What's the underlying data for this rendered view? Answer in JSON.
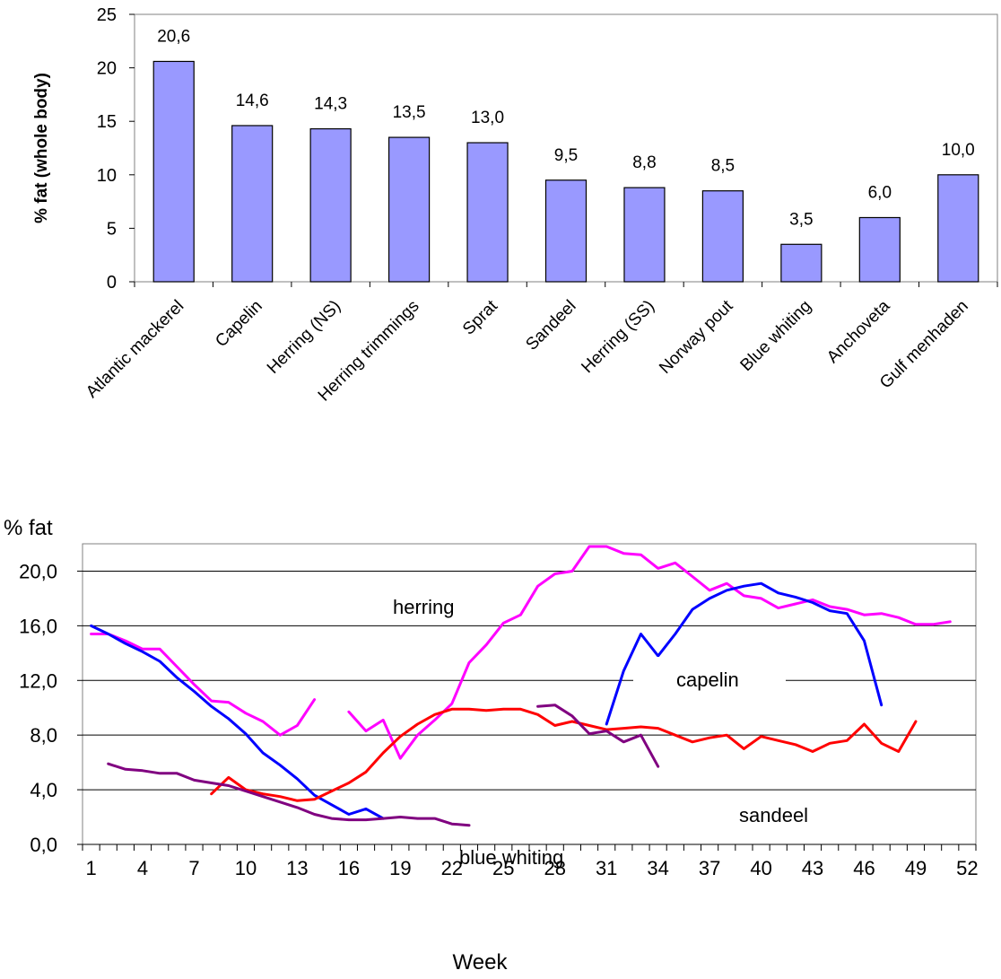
{
  "chart_data": [
    {
      "type": "bar",
      "ylabel": "% fat (whole body)",
      "ylim": [
        0,
        25
      ],
      "yticks": [
        "0",
        "5",
        "10",
        "15",
        "20",
        "25"
      ],
      "categories": [
        "Atlantic mackerel",
        "Capelin",
        "Herring (NS)",
        "Herring trimmings",
        "Sprat",
        "Sandeel",
        "Herring (SS)",
        "Norway pout",
        "Blue whiting",
        "Anchoveta",
        "Gulf menhaden"
      ],
      "values": [
        20.6,
        14.6,
        14.3,
        13.5,
        13.0,
        9.5,
        8.8,
        8.5,
        3.5,
        6.0,
        10.0
      ],
      "value_labels": [
        "20,6",
        "14,6",
        "14,3",
        "13,5",
        "13,0",
        "9,5",
        "8,8",
        "8,5",
        "3,5",
        "6,0",
        "10,0"
      ],
      "bar_color": "#9999ff",
      "grid": false
    },
    {
      "type": "line",
      "ylabel": "% fat",
      "xlabel": "Week",
      "xlim": [
        1,
        52
      ],
      "ylim": [
        0,
        22
      ],
      "xticks": [
        "1",
        "4",
        "7",
        "10",
        "13",
        "16",
        "19",
        "22",
        "25",
        "28",
        "31",
        "34",
        "37",
        "40",
        "43",
        "46",
        "49",
        "52"
      ],
      "yticks": [
        "0,0",
        "4,0",
        "8,0",
        "12,0",
        "16,0",
        "20,0"
      ],
      "grid": true,
      "series": [
        {
          "name": "herring",
          "color": "#ff00ff",
          "segments": [
            [
              [
                1,
                15.4
              ],
              [
                2,
                15.4
              ],
              [
                3,
                14.9
              ],
              [
                4,
                14.3
              ],
              [
                5,
                14.3
              ],
              [
                6,
                13.0
              ],
              [
                7,
                11.7
              ],
              [
                8,
                10.5
              ],
              [
                9,
                10.4
              ],
              [
                10,
                9.6
              ],
              [
                11,
                9.0
              ],
              [
                12,
                8.0
              ],
              [
                13,
                8.7
              ],
              [
                14,
                10.6
              ]
            ],
            [
              [
                16,
                9.7
              ],
              [
                17,
                8.3
              ],
              [
                18,
                9.1
              ],
              [
                19,
                6.3
              ],
              [
                20,
                8.0
              ],
              [
                21,
                9.1
              ],
              [
                22,
                10.3
              ],
              [
                23,
                13.3
              ],
              [
                24,
                14.6
              ],
              [
                25,
                16.2
              ],
              [
                26,
                16.8
              ],
              [
                27,
                18.9
              ],
              [
                28,
                19.8
              ],
              [
                29,
                20.0
              ],
              [
                30,
                21.8
              ],
              [
                31,
                21.8
              ],
              [
                32,
                21.3
              ],
              [
                33,
                21.2
              ],
              [
                34,
                20.2
              ],
              [
                35,
                20.6
              ],
              [
                36,
                19.6
              ],
              [
                37,
                18.6
              ],
              [
                38,
                19.1
              ],
              [
                39,
                18.2
              ],
              [
                40,
                18.0
              ],
              [
                41,
                17.3
              ],
              [
                42,
                17.6
              ],
              [
                43,
                17.9
              ],
              [
                44,
                17.4
              ],
              [
                45,
                17.2
              ],
              [
                46,
                16.8
              ],
              [
                47,
                16.9
              ],
              [
                48,
                16.6
              ],
              [
                49,
                16.1
              ],
              [
                50,
                16.1
              ],
              [
                51,
                16.3
              ]
            ]
          ]
        },
        {
          "name": "capelin",
          "color": "#0000ff",
          "segments": [
            [
              [
                1,
                16.0
              ],
              [
                2,
                15.4
              ],
              [
                3,
                14.7
              ],
              [
                4,
                14.1
              ],
              [
                5,
                13.4
              ],
              [
                6,
                12.2
              ],
              [
                7,
                11.2
              ],
              [
                8,
                10.1
              ],
              [
                9,
                9.2
              ],
              [
                10,
                8.1
              ],
              [
                11,
                6.7
              ],
              [
                12,
                5.8
              ],
              [
                13,
                4.8
              ],
              [
                14,
                3.6
              ],
              [
                15,
                2.9
              ],
              [
                16,
                2.2
              ],
              [
                17,
                2.6
              ],
              [
                18,
                1.9
              ]
            ],
            [
              [
                31,
                8.8
              ],
              [
                32,
                12.7
              ],
              [
                33,
                15.4
              ],
              [
                34,
                13.8
              ],
              [
                35,
                15.4
              ],
              [
                36,
                17.2
              ],
              [
                37,
                18.0
              ],
              [
                38,
                18.6
              ],
              [
                39,
                18.9
              ],
              [
                40,
                19.1
              ],
              [
                41,
                18.4
              ],
              [
                42,
                18.1
              ],
              [
                43,
                17.7
              ],
              [
                44,
                17.1
              ],
              [
                45,
                16.9
              ],
              [
                46,
                14.9
              ],
              [
                47,
                10.2
              ]
            ]
          ]
        },
        {
          "name": "sandeel",
          "color": "#ff0000",
          "segments": [
            [
              [
                8,
                3.7
              ],
              [
                9,
                4.9
              ],
              [
                10,
                4.0
              ],
              [
                11,
                3.7
              ],
              [
                12,
                3.5
              ],
              [
                13,
                3.2
              ],
              [
                14,
                3.3
              ],
              [
                15,
                3.9
              ],
              [
                16,
                4.5
              ],
              [
                17,
                5.3
              ],
              [
                18,
                6.7
              ],
              [
                19,
                7.9
              ],
              [
                20,
                8.8
              ],
              [
                21,
                9.5
              ],
              [
                22,
                9.9
              ],
              [
                23,
                9.9
              ],
              [
                24,
                9.8
              ],
              [
                25,
                9.9
              ],
              [
                26,
                9.9
              ],
              [
                27,
                9.5
              ],
              [
                28,
                8.7
              ],
              [
                29,
                9.0
              ],
              [
                30,
                8.7
              ],
              [
                31,
                8.4
              ],
              [
                32,
                8.5
              ],
              [
                33,
                8.6
              ],
              [
                34,
                8.5
              ],
              [
                35,
                8.0
              ],
              [
                36,
                7.5
              ],
              [
                37,
                7.8
              ],
              [
                38,
                8.0
              ],
              [
                39,
                7.0
              ],
              [
                40,
                7.9
              ],
              [
                41,
                7.6
              ],
              [
                42,
                7.3
              ],
              [
                43,
                6.8
              ],
              [
                44,
                7.4
              ],
              [
                45,
                7.6
              ],
              [
                46,
                8.8
              ],
              [
                47,
                7.4
              ],
              [
                48,
                6.8
              ],
              [
                49,
                9.0
              ]
            ]
          ]
        },
        {
          "name": "blue whiting",
          "color": "#800080",
          "segments": [
            [
              [
                2,
                5.9
              ],
              [
                3,
                5.5
              ],
              [
                4,
                5.4
              ],
              [
                5,
                5.2
              ],
              [
                6,
                5.2
              ],
              [
                7,
                4.7
              ],
              [
                8,
                4.5
              ],
              [
                9,
                4.3
              ],
              [
                10,
                3.9
              ],
              [
                11,
                3.5
              ],
              [
                12,
                3.1
              ],
              [
                13,
                2.7
              ],
              [
                14,
                2.2
              ],
              [
                15,
                1.9
              ],
              [
                16,
                1.8
              ],
              [
                17,
                1.8
              ],
              [
                18,
                1.9
              ],
              [
                19,
                2.0
              ],
              [
                20,
                1.9
              ],
              [
                21,
                1.9
              ],
              [
                22,
                1.5
              ],
              [
                23,
                1.4
              ]
            ],
            [
              [
                27,
                10.1
              ],
              [
                28,
                10.2
              ],
              [
                29,
                9.4
              ],
              [
                30,
                8.1
              ],
              [
                31,
                8.3
              ],
              [
                32,
                7.5
              ],
              [
                33,
                8.0
              ],
              [
                34,
                5.7
              ]
            ]
          ]
        }
      ],
      "annotations": [
        "herring",
        "capelin",
        "sandeel",
        "blue whiting"
      ]
    }
  ]
}
